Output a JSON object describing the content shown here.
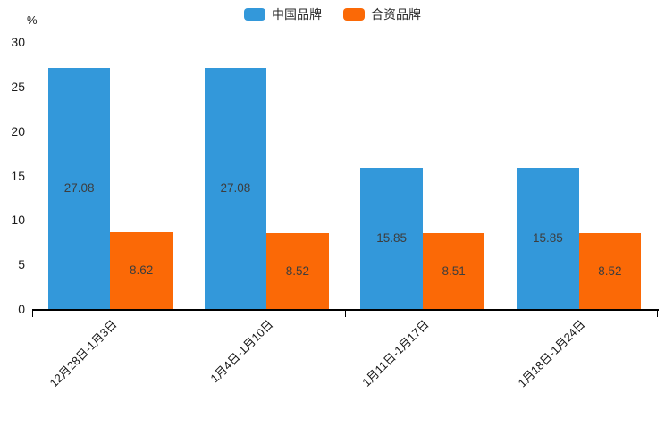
{
  "chart_data": {
    "type": "bar",
    "title": "",
    "categories": [
      "12月28日-1月3日",
      "1月4日-1月10日",
      "1月11日-1月17日",
      "1月18日-1月24日"
    ],
    "series": [
      {
        "name": "中国品牌",
        "color": "#3398da",
        "values": [
          27.08,
          27.08,
          15.85,
          15.85
        ]
      },
      {
        "name": "合资品牌",
        "color": "#fb6906",
        "values": [
          8.62,
          8.52,
          8.51,
          8.52
        ]
      }
    ],
    "xlabel": "",
    "ylabel": "%",
    "ylim": [
      0,
      30
    ],
    "yticks": [
      0,
      5,
      10,
      15,
      20,
      25,
      30
    ],
    "grid": false,
    "legend_position": "top-center",
    "value_labels": "inside-center",
    "value_label_decimals": 2,
    "xtick_rotation": 45,
    "bar_colors": {
      "accent_blue": "#3398da",
      "accent_orange": "#fb6906"
    }
  }
}
